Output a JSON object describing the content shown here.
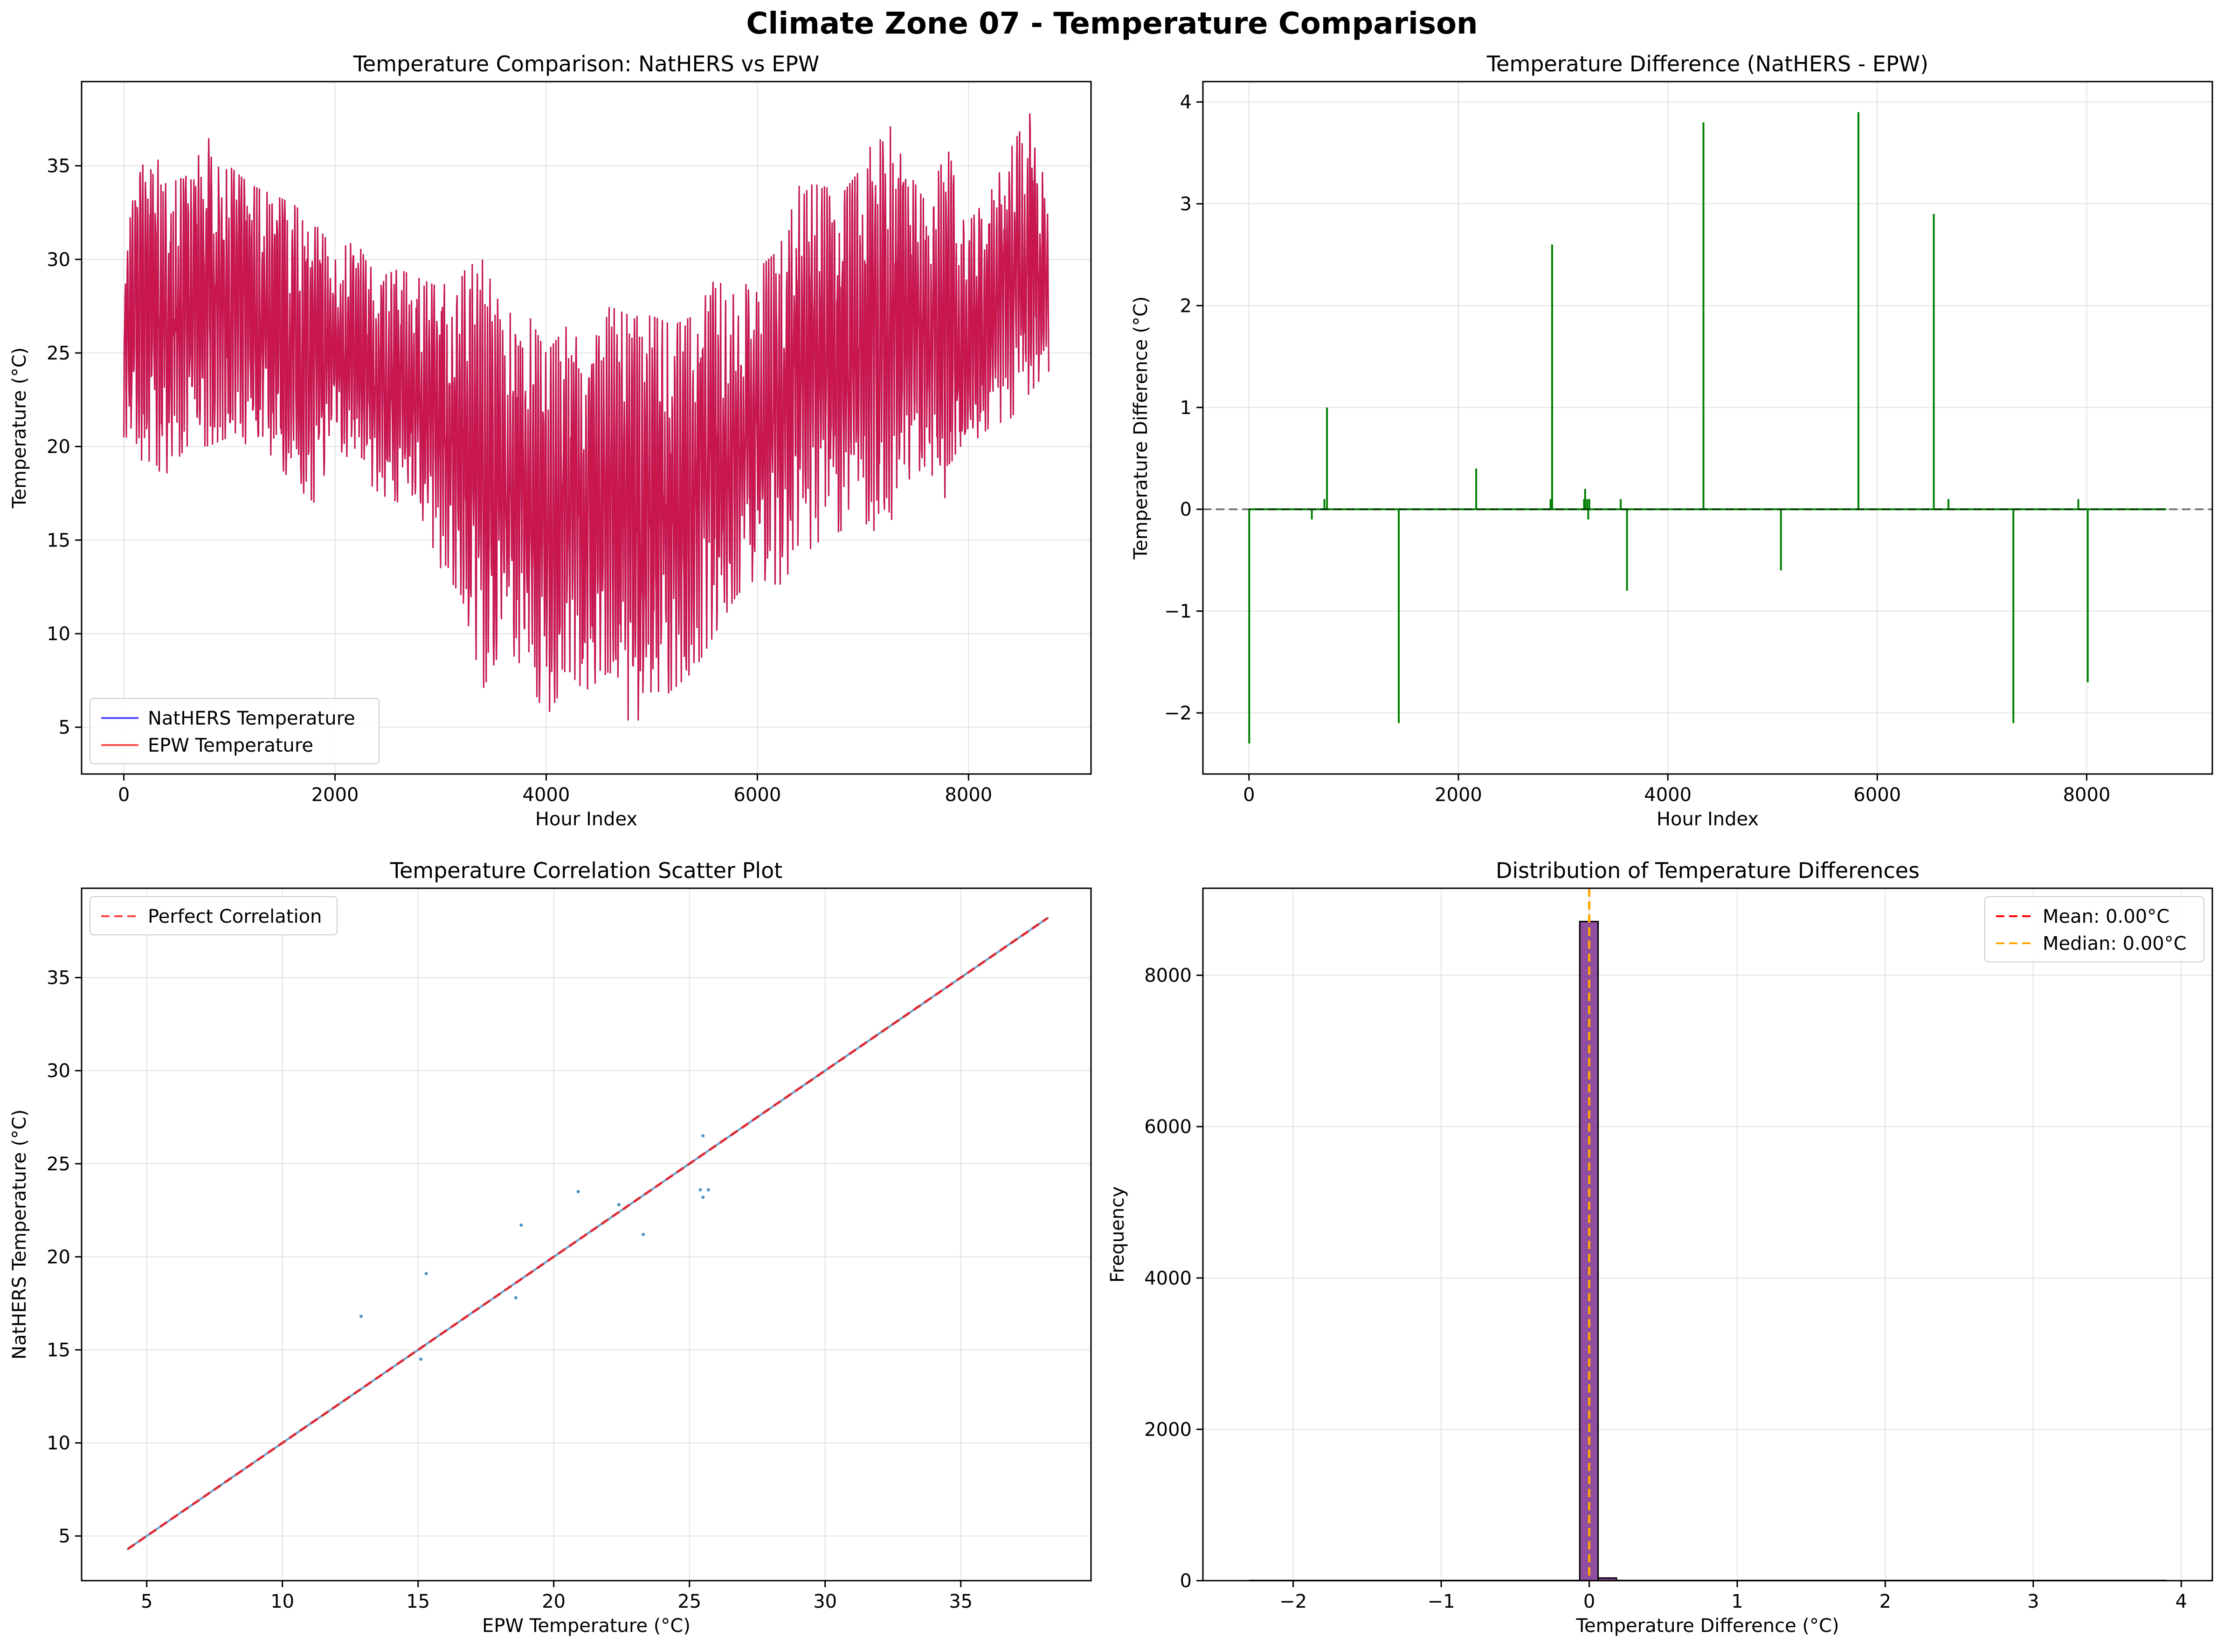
{
  "suptitle": "Climate Zone 07 - Temperature Comparison",
  "chart_data": [
    {
      "type": "line",
      "title": "Temperature Comparison: NatHERS vs EPW",
      "xlabel": "Hour Index",
      "ylabel": "Temperature (°C)",
      "xlim": [
        -400,
        9160
      ],
      "ylim": [
        2.5,
        39.5
      ],
      "xticks": [
        0,
        2000,
        4000,
        6000,
        8000
      ],
      "yticks": [
        5,
        10,
        15,
        20,
        25,
        30,
        35
      ],
      "grid": true,
      "legend": "lower-left",
      "series": [
        {
          "name": "NatHERS Temperature",
          "color": "#0000ff"
        },
        {
          "name": "EPW Temperature",
          "color": "#ff0000"
        }
      ],
      "envelope": {
        "x": [
          0,
          200,
          400,
          600,
          800,
          1000,
          1200,
          1400,
          1600,
          1800,
          2000,
          2200,
          2400,
          2600,
          2800,
          3000,
          3200,
          3400,
          3600,
          3800,
          4000,
          4200,
          4400,
          4600,
          4800,
          5000,
          5200,
          5400,
          5600,
          5800,
          6000,
          6200,
          6400,
          6600,
          6800,
          7000,
          7200,
          7400,
          7600,
          7800,
          8000,
          8200,
          8400,
          8600,
          8760
        ],
        "min": [
          20.5,
          19,
          18.5,
          20,
          20,
          20.5,
          20,
          19.5,
          18,
          17,
          20,
          19,
          17.5,
          17,
          16.5,
          13.5,
          12,
          7,
          9.5,
          8,
          5.5,
          7.5,
          7,
          8,
          5,
          6,
          7,
          8,
          10,
          12,
          13,
          12.5,
          14,
          15,
          15.5,
          16,
          15,
          18,
          19,
          17,
          20,
          21,
          21.5,
          23,
          24
        ],
        "max": [
          30,
          37.5,
          34,
          34.5,
          36.5,
          35,
          34,
          33.5,
          33,
          32,
          30.5,
          31,
          29,
          29.5,
          29,
          28.5,
          29.5,
          30,
          27,
          27.5,
          25,
          26.5,
          25,
          27.5,
          27,
          27,
          26.5,
          27,
          29,
          28,
          29.5,
          30.5,
          34,
          34,
          33.5,
          35,
          38,
          35,
          33,
          36,
          32,
          33.5,
          36,
          38,
          33
        ]
      }
    },
    {
      "type": "bar",
      "title": "Temperature Difference (NatHERS - EPW)",
      "xlabel": "Hour Index",
      "ylabel": "Temperature Difference (°C)",
      "xlim": [
        -440,
        9200
      ],
      "ylim": [
        -2.6,
        4.2
      ],
      "xticks": [
        0,
        2000,
        4000,
        6000,
        8000
      ],
      "yticks": [
        -2,
        -1,
        0,
        1,
        2,
        3,
        4
      ],
      "grid": true,
      "color": "#008000",
      "reference_line": 0,
      "x": [
        2,
        600,
        720,
        745,
        1430,
        2170,
        2880,
        2895,
        3200,
        3210,
        3230,
        3240,
        3250,
        3550,
        3610,
        4340,
        5080,
        5820,
        6540,
        6680,
        7300,
        7920,
        8010
      ],
      "values": [
        -2.3,
        -0.1,
        0.1,
        1.0,
        -2.1,
        0.4,
        0.1,
        2.6,
        0.1,
        0.2,
        0.1,
        -0.1,
        0.1,
        0.1,
        -0.8,
        3.8,
        -0.6,
        3.9,
        2.9,
        0.1,
        -2.1,
        0.1,
        -1.7
      ]
    },
    {
      "type": "scatter",
      "title": "Temperature Correlation Scatter Plot",
      "xlabel": "EPW Temperature (°C)",
      "ylabel": "NatHERS Temperature (°C)",
      "xlim": [
        2.6,
        39.8
      ],
      "ylim": [
        2.6,
        39.8
      ],
      "xticks": [
        5,
        10,
        15,
        20,
        25,
        30,
        35
      ],
      "yticks": [
        5,
        10,
        15,
        20,
        25,
        30,
        35
      ],
      "grid": true,
      "legend": "top-left",
      "perfect_line": {
        "name": "Perfect Correlation",
        "from": 4.3,
        "to": 38.2,
        "color": "#ff0000"
      },
      "point_color": "#1f77b4",
      "x": [
        12.9,
        15.1,
        15.3,
        18.6,
        18.8,
        20.9,
        22.4,
        23.3,
        25.4,
        25.5,
        25.5,
        25.7
      ],
      "y": [
        16.8,
        14.5,
        19.1,
        17.8,
        21.7,
        23.5,
        22.8,
        21.2,
        23.6,
        23.2,
        26.5,
        23.6
      ]
    },
    {
      "type": "bar",
      "title": "Distribution of Temperature Differences",
      "xlabel": "Temperature Difference (°C)",
      "ylabel": "Frequency",
      "xlim": [
        -2.61,
        4.21
      ],
      "ylim": [
        0,
        9150
      ],
      "xticks": [
        -2,
        -1,
        0,
        1,
        2,
        3,
        4
      ],
      "yticks": [
        0,
        2000,
        4000,
        6000,
        8000
      ],
      "grid": true,
      "legend": "top-right",
      "bar_color": "#7b2f8f",
      "bins": [
        {
          "from": -0.064,
          "to": 0.06,
          "count": 8710
        },
        {
          "from": 0.06,
          "to": 0.184,
          "count": 35
        }
      ],
      "mean": {
        "label": "Mean: 0.00°C",
        "value": 0.0,
        "color": "#ff0000"
      },
      "median": {
        "label": "Median: 0.00°C",
        "value": 0.0,
        "color": "#ffa500"
      }
    }
  ]
}
